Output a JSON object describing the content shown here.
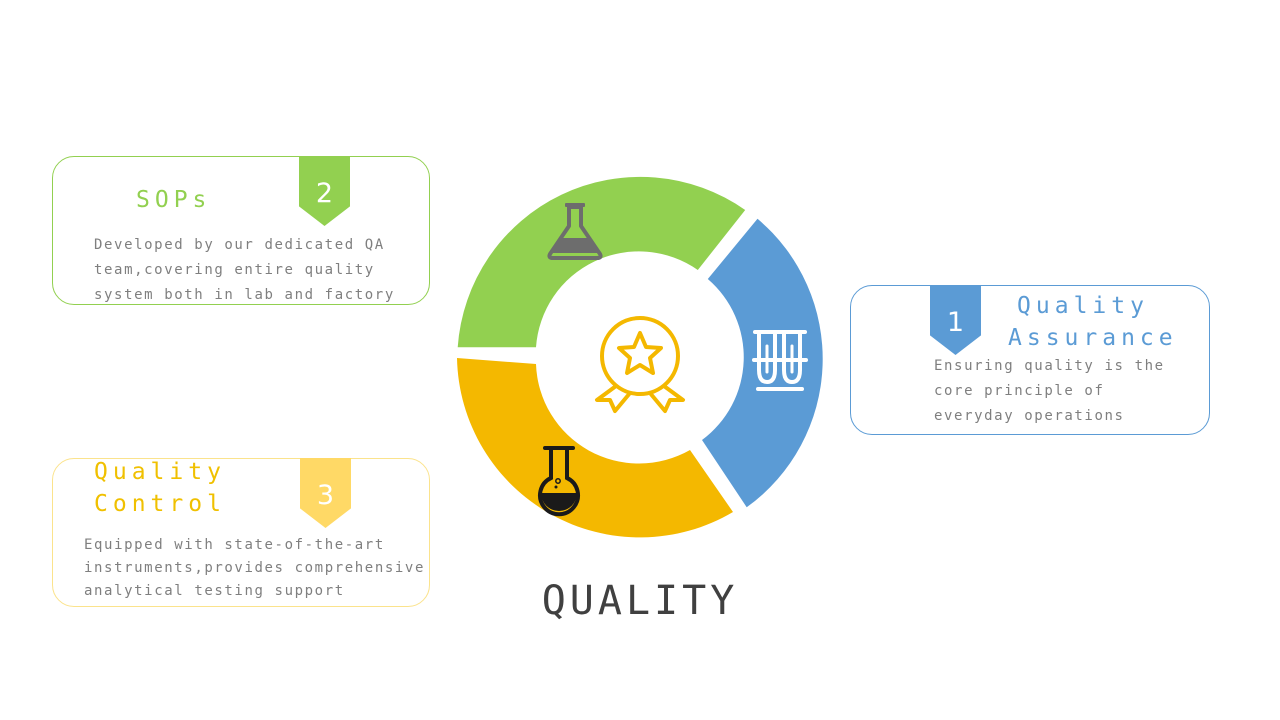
{
  "diagram": {
    "center_label": "QUALITY",
    "segments": [
      {
        "id": "sops",
        "color": "#92d050",
        "icon": "erlenmeyer-flask-icon"
      },
      {
        "id": "quality-assurance",
        "color": "#5b9bd5",
        "icon": "test-tubes-icon"
      },
      {
        "id": "quality-control",
        "color": "#f4b800",
        "icon": "round-bottom-flask-icon"
      }
    ],
    "center_icon": "award-ribbon-icon",
    "center_icon_color": "#f4b800"
  },
  "cards": {
    "sops": {
      "number": "2",
      "title": "SOPs",
      "description": "Developed by our dedicated QA\nteam,covering entire quality\nsystem both in lab and factory",
      "color": "#92d050"
    },
    "quality_control": {
      "number": "3",
      "title": "Quality\nControl",
      "description": "Equipped with state-of-the-art\ninstruments,provides comprehensive\nanalytical testing support",
      "color": "#ffd966"
    },
    "quality_assurance": {
      "number": "1",
      "title": "Quality\nAssurance",
      "description": "Ensuring quality is the\ncore principle of\neveryday operations",
      "color": "#5b9bd5"
    }
  }
}
